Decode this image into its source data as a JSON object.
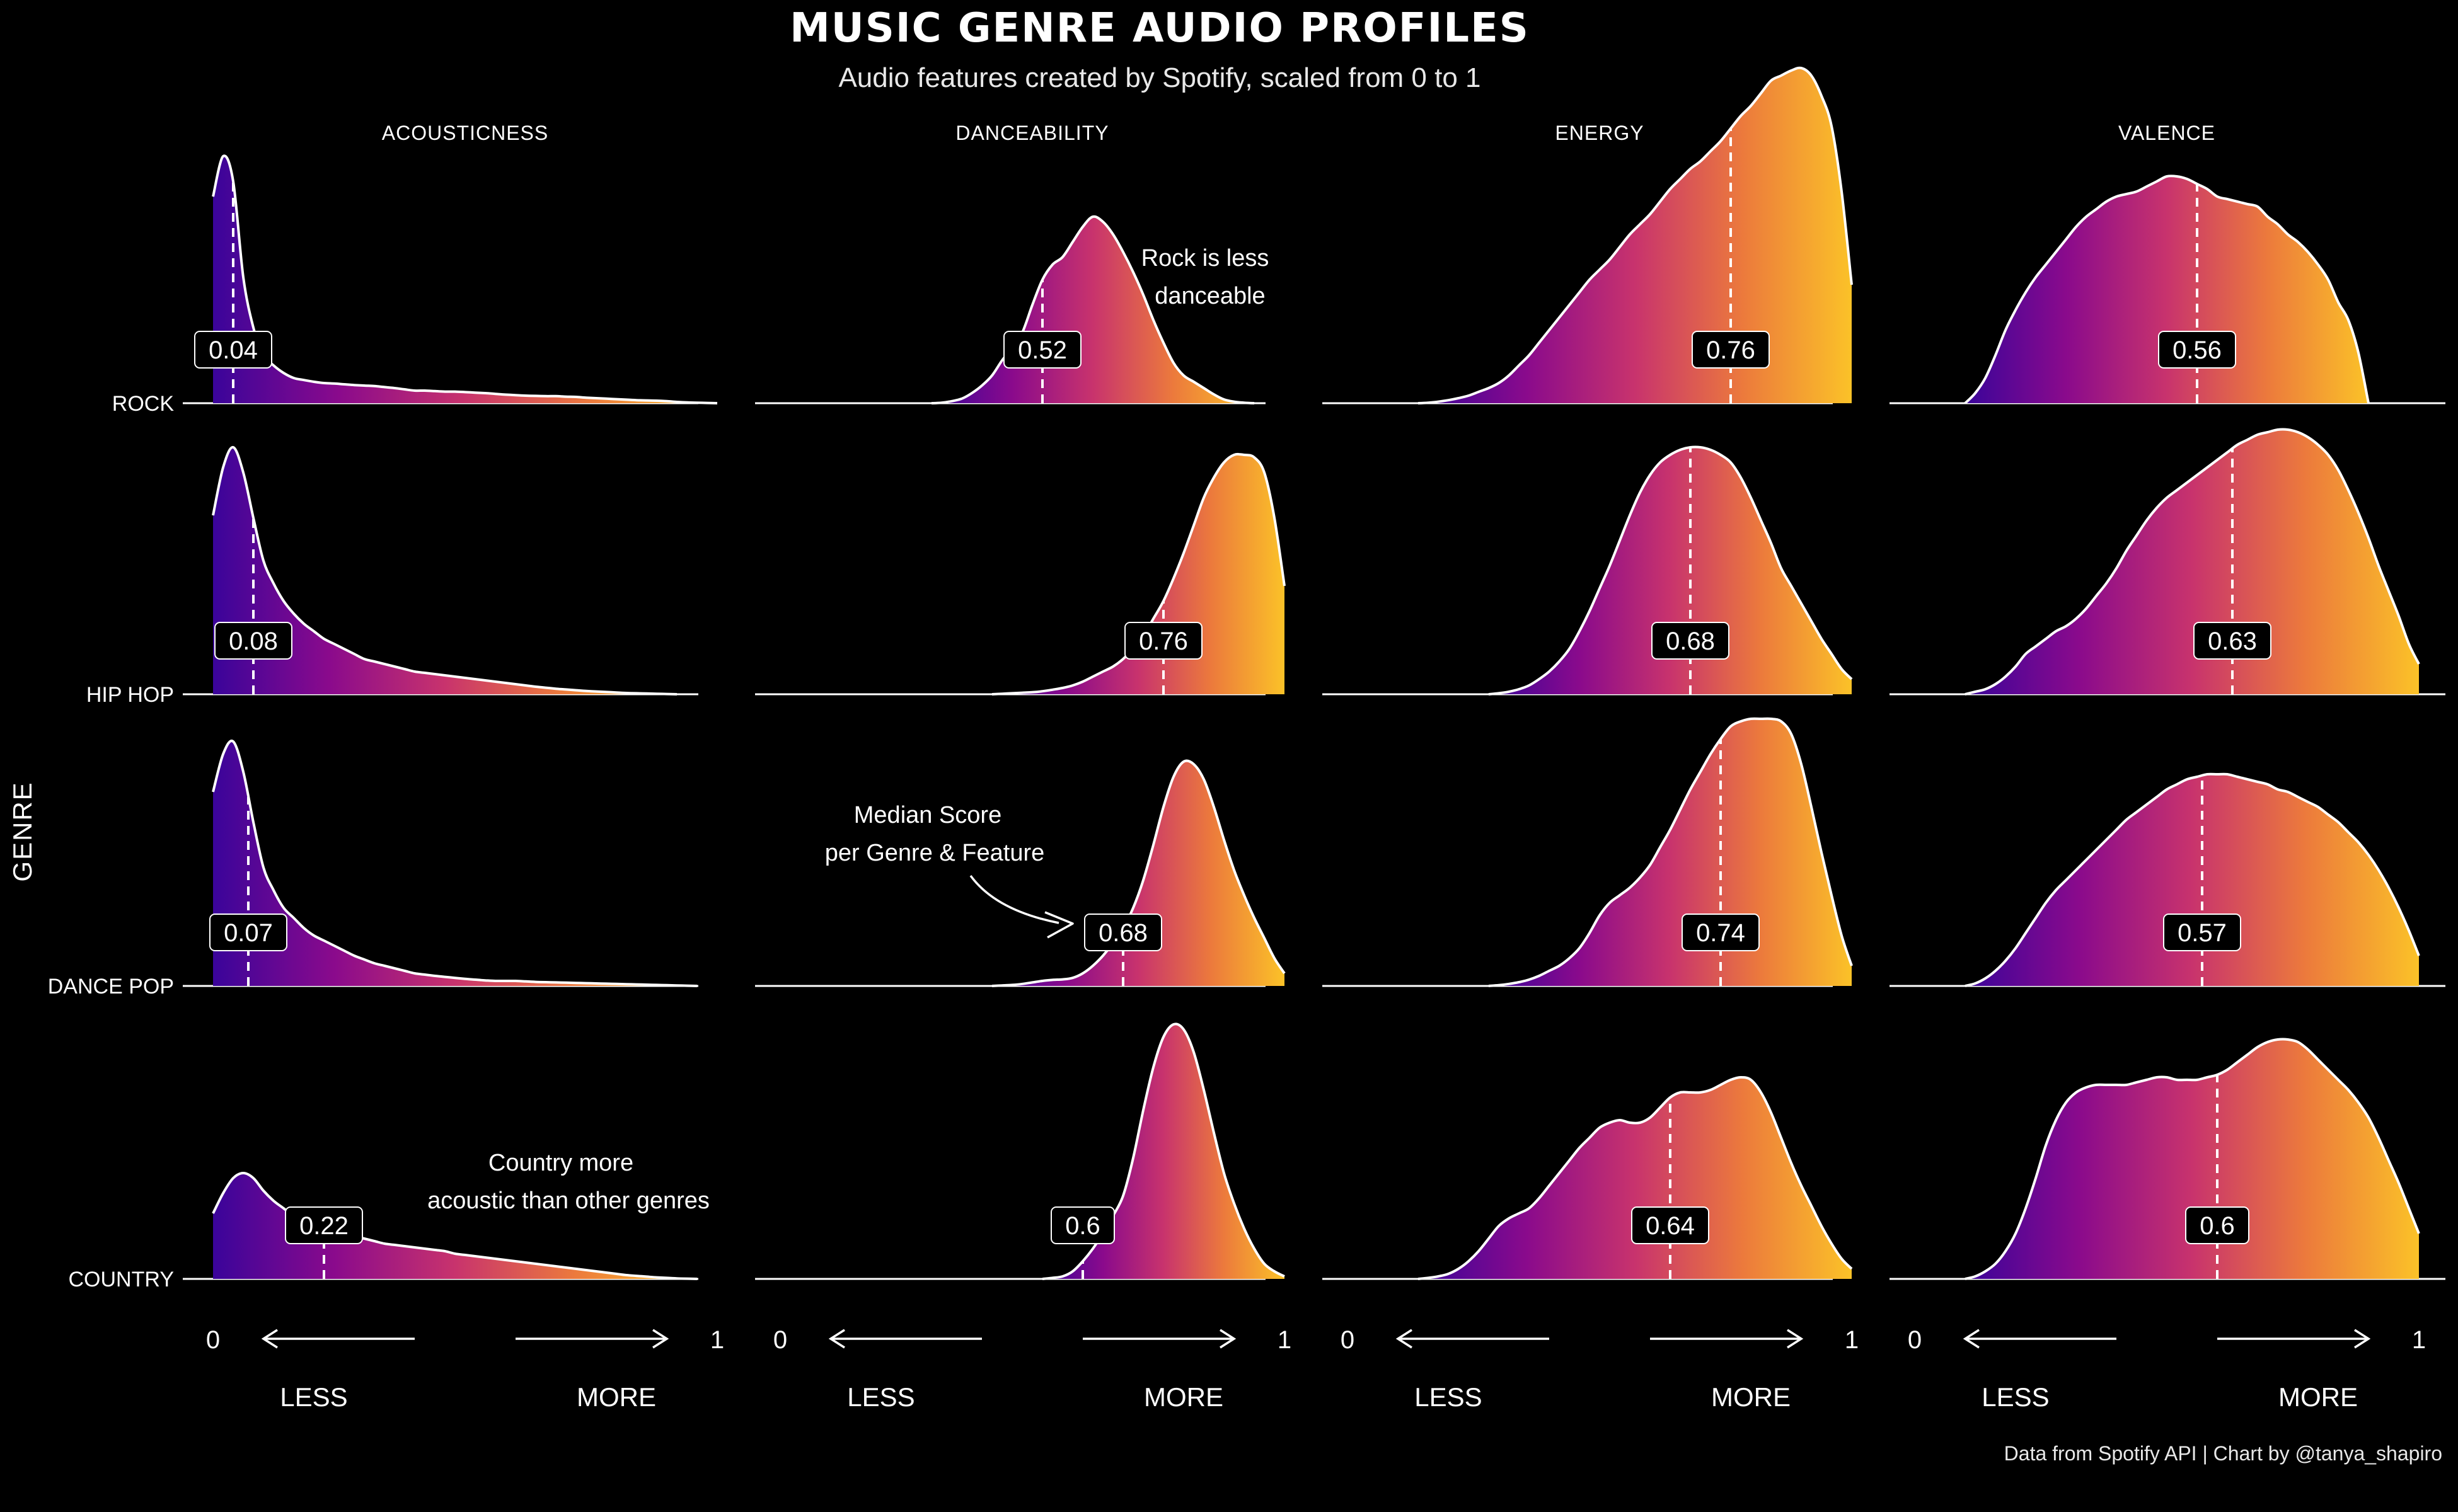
{
  "chart_data": {
    "type": "ridgeline-density",
    "title": "MUSIC GENRE AUDIO PROFILES",
    "subtitle": "Audio features created by Spotify, scaled from 0 to 1",
    "ylabel": "GENRE",
    "features": [
      "ACOUSTICNESS",
      "DANCEABILITY",
      "ENERGY",
      "VALENCE"
    ],
    "genres": [
      "ROCK",
      "HIP HOP",
      "DANCE POP",
      "COUNTRY"
    ],
    "xlim": [
      0,
      1
    ],
    "x_ticks": [
      "0",
      "1"
    ],
    "x_words": {
      "less": "LESS",
      "more": "MORE"
    },
    "gradient_colors": [
      "#3a049a",
      "#8a0a8c",
      "#c8336d",
      "#ec7a3c",
      "#fbc228"
    ],
    "median_labels": [
      [
        "0.04",
        "0.52",
        "0.76",
        "0.56"
      ],
      [
        "0.08",
        "0.76",
        "0.68",
        "0.63"
      ],
      [
        "0.07",
        "0.68",
        "0.74",
        "0.57"
      ],
      [
        "0.22",
        "0.6",
        "0.64",
        "0.6"
      ]
    ],
    "medians": [
      [
        0.04,
        0.52,
        0.76,
        0.56
      ],
      [
        0.08,
        0.76,
        0.68,
        0.63
      ],
      [
        0.07,
        0.68,
        0.74,
        0.57
      ],
      [
        0.22,
        0.6,
        0.64,
        0.6
      ]
    ],
    "densities": {
      "x": [
        0,
        0.02,
        0.04,
        0.06,
        0.08,
        0.1,
        0.12,
        0.14,
        0.16,
        0.18,
        0.2,
        0.22,
        0.24,
        0.26,
        0.28,
        0.3,
        0.32,
        0.34,
        0.36,
        0.38,
        0.4,
        0.42,
        0.44,
        0.46,
        0.48,
        0.5,
        0.52,
        0.54,
        0.56,
        0.58,
        0.6,
        0.62,
        0.64,
        0.66,
        0.68,
        0.7,
        0.72,
        0.74,
        0.76,
        0.78,
        0.8,
        0.82,
        0.84,
        0.86,
        0.88,
        0.9,
        0.92,
        0.94,
        0.96,
        0.98,
        1.0
      ],
      "rock": [
        [
          0.82,
          0.98,
          0.88,
          0.5,
          0.3,
          0.19,
          0.15,
          0.12,
          0.1,
          0.092,
          0.085,
          0.08,
          0.078,
          0.075,
          0.072,
          0.07,
          0.068,
          0.064,
          0.06,
          0.055,
          0.05,
          0.05,
          0.048,
          0.046,
          0.046,
          0.044,
          0.042,
          0.04,
          0.037,
          0.034,
          0.032,
          0.03,
          0.029,
          0.028,
          0.028,
          0.026,
          0.025,
          0.022,
          0.02,
          0.018,
          0.016,
          0.014,
          0.012,
          0.011,
          0.01,
          0.008,
          0.005,
          0.003,
          0.002,
          0.001,
          0
        ],
        [
          0,
          0,
          0,
          0,
          0,
          0,
          0,
          0,
          0,
          0,
          0,
          0,
          0,
          0,
          0,
          0,
          0.002,
          0.008,
          0.018,
          0.04,
          0.07,
          0.11,
          0.17,
          0.22,
          0.28,
          0.39,
          0.49,
          0.55,
          0.58,
          0.64,
          0.7,
          0.74,
          0.72,
          0.67,
          0.6,
          0.52,
          0.43,
          0.33,
          0.24,
          0.16,
          0.11,
          0.085,
          0.06,
          0.035,
          0.015,
          0.006,
          0.002,
          0,
          0,
          0,
          0
        ],
        [
          0,
          0,
          0,
          0,
          0,
          0,
          0,
          0,
          0.002,
          0.006,
          0.012,
          0.02,
          0.03,
          0.045,
          0.06,
          0.08,
          0.11,
          0.15,
          0.19,
          0.24,
          0.29,
          0.34,
          0.39,
          0.44,
          0.49,
          0.53,
          0.57,
          0.62,
          0.67,
          0.71,
          0.75,
          0.8,
          0.85,
          0.89,
          0.93,
          0.96,
          1.0,
          1.04,
          1.09,
          1.14,
          1.18,
          1.23,
          1.28,
          1.3,
          1.32,
          1.33,
          1.3,
          1.22,
          1.1,
          0.84,
          0.47
        ],
        [
          0,
          0,
          0,
          0,
          0,
          0,
          0.04,
          0.1,
          0.19,
          0.29,
          0.37,
          0.44,
          0.5,
          0.55,
          0.6,
          0.65,
          0.7,
          0.74,
          0.77,
          0.8,
          0.82,
          0.83,
          0.84,
          0.86,
          0.88,
          0.9,
          0.9,
          0.89,
          0.87,
          0.85,
          0.82,
          0.81,
          0.8,
          0.79,
          0.78,
          0.74,
          0.71,
          0.67,
          0.64,
          0.6,
          0.55,
          0.49,
          0.4,
          0.33,
          0.2,
          0,
          0,
          0,
          0,
          0,
          0
        ]
      ],
      "hiphop": [
        [
          0.71,
          0.9,
          0.98,
          0.88,
          0.7,
          0.53,
          0.44,
          0.37,
          0.32,
          0.28,
          0.25,
          0.22,
          0.2,
          0.18,
          0.16,
          0.14,
          0.13,
          0.12,
          0.11,
          0.1,
          0.09,
          0.085,
          0.08,
          0.075,
          0.07,
          0.065,
          0.06,
          0.055,
          0.05,
          0.045,
          0.04,
          0.035,
          0.03,
          0.026,
          0.022,
          0.019,
          0.016,
          0.013,
          0.011,
          0.009,
          0.007,
          0.005,
          0.004,
          0.003,
          0.002,
          0.001,
          0,
          0,
          0,
          0,
          0
        ],
        [
          0,
          0,
          0,
          0,
          0,
          0,
          0,
          0,
          0,
          0,
          0,
          0,
          0,
          0,
          0,
          0,
          0,
          0,
          0,
          0,
          0,
          0,
          0.002,
          0.004,
          0.006,
          0.008,
          0.012,
          0.018,
          0.025,
          0.035,
          0.05,
          0.07,
          0.09,
          0.11,
          0.14,
          0.18,
          0.23,
          0.3,
          0.37,
          0.46,
          0.56,
          0.67,
          0.78,
          0.86,
          0.92,
          0.95,
          0.95,
          0.94,
          0.88,
          0.7,
          0.43
        ],
        [
          0,
          0,
          0,
          0,
          0,
          0,
          0,
          0,
          0,
          0,
          0,
          0,
          0,
          0,
          0,
          0.004,
          0.01,
          0.02,
          0.035,
          0.06,
          0.09,
          0.13,
          0.18,
          0.25,
          0.33,
          0.42,
          0.51,
          0.61,
          0.71,
          0.8,
          0.87,
          0.92,
          0.95,
          0.97,
          0.98,
          0.98,
          0.97,
          0.95,
          0.92,
          0.86,
          0.78,
          0.69,
          0.6,
          0.5,
          0.43,
          0.36,
          0.29,
          0.22,
          0.16,
          0.1,
          0.06
        ],
        [
          0,
          0,
          0,
          0,
          0,
          0,
          0.01,
          0.02,
          0.04,
          0.07,
          0.11,
          0.16,
          0.19,
          0.22,
          0.25,
          0.27,
          0.3,
          0.34,
          0.39,
          0.44,
          0.5,
          0.57,
          0.63,
          0.69,
          0.74,
          0.78,
          0.81,
          0.84,
          0.87,
          0.9,
          0.93,
          0.96,
          0.99,
          1.01,
          1.03,
          1.04,
          1.05,
          1.05,
          1.04,
          1.02,
          0.99,
          0.95,
          0.89,
          0.81,
          0.72,
          0.62,
          0.51,
          0.41,
          0.31,
          0.2,
          0.12
        ]
      ],
      "dancepop": [
        [
          0.77,
          0.92,
          0.97,
          0.85,
          0.65,
          0.47,
          0.38,
          0.31,
          0.27,
          0.23,
          0.2,
          0.18,
          0.16,
          0.14,
          0.12,
          0.105,
          0.09,
          0.08,
          0.07,
          0.06,
          0.05,
          0.045,
          0.04,
          0.036,
          0.032,
          0.028,
          0.025,
          0.022,
          0.02,
          0.02,
          0.02,
          0.018,
          0.016,
          0.015,
          0.014,
          0.013,
          0.012,
          0.011,
          0.01,
          0.009,
          0.008,
          0.007,
          0.006,
          0.005,
          0.004,
          0.003,
          0.002,
          0.001,
          0,
          0,
          0
        ],
        [
          0,
          0,
          0,
          0,
          0,
          0,
          0,
          0,
          0,
          0,
          0,
          0,
          0,
          0,
          0,
          0,
          0,
          0,
          0,
          0,
          0,
          0,
          0.002,
          0.004,
          0.008,
          0.014,
          0.02,
          0.024,
          0.026,
          0.032,
          0.05,
          0.08,
          0.12,
          0.17,
          0.23,
          0.31,
          0.42,
          0.56,
          0.71,
          0.83,
          0.89,
          0.88,
          0.82,
          0.71,
          0.58,
          0.46,
          0.36,
          0.27,
          0.19,
          0.11,
          0.05
        ],
        [
          0,
          0,
          0,
          0,
          0,
          0,
          0,
          0,
          0,
          0,
          0,
          0,
          0,
          0,
          0,
          0.003,
          0.008,
          0.015,
          0.025,
          0.04,
          0.06,
          0.08,
          0.11,
          0.15,
          0.21,
          0.28,
          0.33,
          0.36,
          0.39,
          0.43,
          0.48,
          0.55,
          0.62,
          0.7,
          0.78,
          0.85,
          0.92,
          0.98,
          1.03,
          1.05,
          1.06,
          1.06,
          1.06,
          1.05,
          1.0,
          0.88,
          0.71,
          0.53,
          0.36,
          0.2,
          0.08
        ],
        [
          0,
          0,
          0,
          0,
          0,
          0,
          0.01,
          0.03,
          0.06,
          0.1,
          0.15,
          0.21,
          0.27,
          0.33,
          0.38,
          0.42,
          0.46,
          0.5,
          0.54,
          0.58,
          0.62,
          0.66,
          0.69,
          0.72,
          0.75,
          0.78,
          0.8,
          0.82,
          0.83,
          0.84,
          0.84,
          0.84,
          0.83,
          0.82,
          0.81,
          0.8,
          0.78,
          0.77,
          0.75,
          0.73,
          0.71,
          0.68,
          0.65,
          0.61,
          0.57,
          0.52,
          0.46,
          0.39,
          0.31,
          0.22,
          0.12
        ]
      ],
      "country": [
        [
          0.26,
          0.34,
          0.4,
          0.42,
          0.4,
          0.35,
          0.31,
          0.28,
          0.25,
          0.23,
          0.21,
          0.2,
          0.19,
          0.18,
          0.17,
          0.16,
          0.15,
          0.14,
          0.135,
          0.13,
          0.125,
          0.12,
          0.115,
          0.11,
          0.1,
          0.095,
          0.09,
          0.085,
          0.08,
          0.075,
          0.07,
          0.065,
          0.06,
          0.055,
          0.05,
          0.045,
          0.04,
          0.035,
          0.03,
          0.025,
          0.02,
          0.015,
          0.012,
          0.009,
          0.006,
          0.004,
          0.002,
          0.001,
          0,
          0,
          0
        ],
        [
          0,
          0,
          0,
          0,
          0,
          0,
          0,
          0,
          0,
          0,
          0,
          0,
          0,
          0,
          0,
          0,
          0,
          0,
          0,
          0,
          0,
          0,
          0,
          0,
          0,
          0,
          0,
          0.004,
          0.01,
          0.03,
          0.07,
          0.12,
          0.18,
          0.25,
          0.33,
          0.48,
          0.67,
          0.84,
          0.96,
          1.01,
          0.99,
          0.9,
          0.75,
          0.58,
          0.42,
          0.3,
          0.2,
          0.12,
          0.06,
          0.03,
          0.01
        ],
        [
          0,
          0,
          0,
          0,
          0,
          0,
          0,
          0,
          0.004,
          0.01,
          0.02,
          0.04,
          0.07,
          0.11,
          0.16,
          0.21,
          0.24,
          0.26,
          0.28,
          0.32,
          0.37,
          0.42,
          0.47,
          0.52,
          0.56,
          0.6,
          0.62,
          0.63,
          0.62,
          0.62,
          0.64,
          0.68,
          0.72,
          0.74,
          0.74,
          0.74,
          0.75,
          0.77,
          0.79,
          0.8,
          0.79,
          0.74,
          0.66,
          0.56,
          0.46,
          0.37,
          0.29,
          0.21,
          0.14,
          0.08,
          0.04
        ],
        [
          0,
          0,
          0,
          0,
          0,
          0,
          0.01,
          0.03,
          0.06,
          0.11,
          0.18,
          0.28,
          0.4,
          0.53,
          0.63,
          0.7,
          0.74,
          0.76,
          0.77,
          0.77,
          0.77,
          0.77,
          0.78,
          0.79,
          0.8,
          0.8,
          0.79,
          0.79,
          0.79,
          0.8,
          0.81,
          0.83,
          0.86,
          0.89,
          0.92,
          0.94,
          0.95,
          0.95,
          0.94,
          0.91,
          0.87,
          0.83,
          0.79,
          0.75,
          0.7,
          0.64,
          0.56,
          0.47,
          0.38,
          0.28,
          0.18
        ]
      ]
    },
    "annotations": {
      "rock_dance": [
        "Rock is less",
        "danceable"
      ],
      "median": [
        "Median Score",
        "per Genre & Feature"
      ],
      "country_acoustic": [
        "Country more",
        "acoustic than other genres"
      ]
    },
    "caption": "Data from Spotify API | Chart by @tanya_shapiro"
  }
}
